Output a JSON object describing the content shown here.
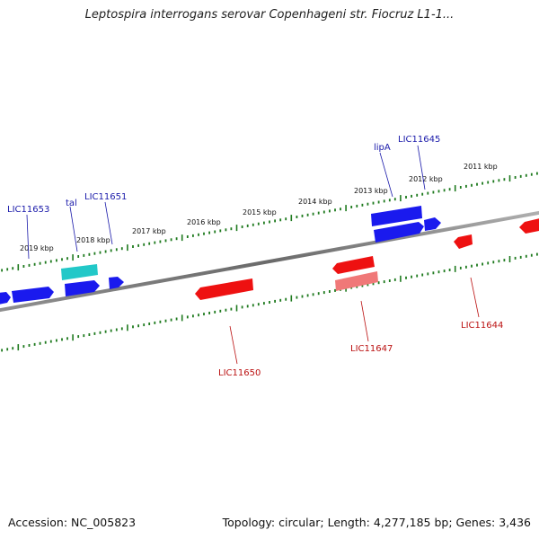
{
  "title": "Leptospira interrogans serovar Copenhageni str. Fiocruz L1-1...",
  "footer": {
    "accession": "Accession: NC_005823",
    "summary": "Topology: circular; Length: 4,277,185 bp; Genes: 3,436"
  },
  "colors": {
    "backbone": "#808080",
    "tick": "#1e7a1e",
    "forward_gene": "#1a1aee",
    "reverse_gene": "#ee1111",
    "rna_gene": "#22c8c8",
    "pseudo_gene": "#f07878",
    "forward_label": "#1a1aaa",
    "reverse_label": "#bb1111"
  },
  "tick_labels": [
    "2019 kbp",
    "2018 kbp",
    "2017 kbp",
    "2016 kbp",
    "2015 kbp",
    "2014 kbp",
    "2013 kbp",
    "2012 kbp",
    "2011 kbp"
  ],
  "gene_labels": [
    "LIC11653",
    "tal",
    "LIC11651",
    "lipA",
    "LIC11645",
    "LIC11650",
    "LIC11647",
    "LIC11644"
  ]
}
